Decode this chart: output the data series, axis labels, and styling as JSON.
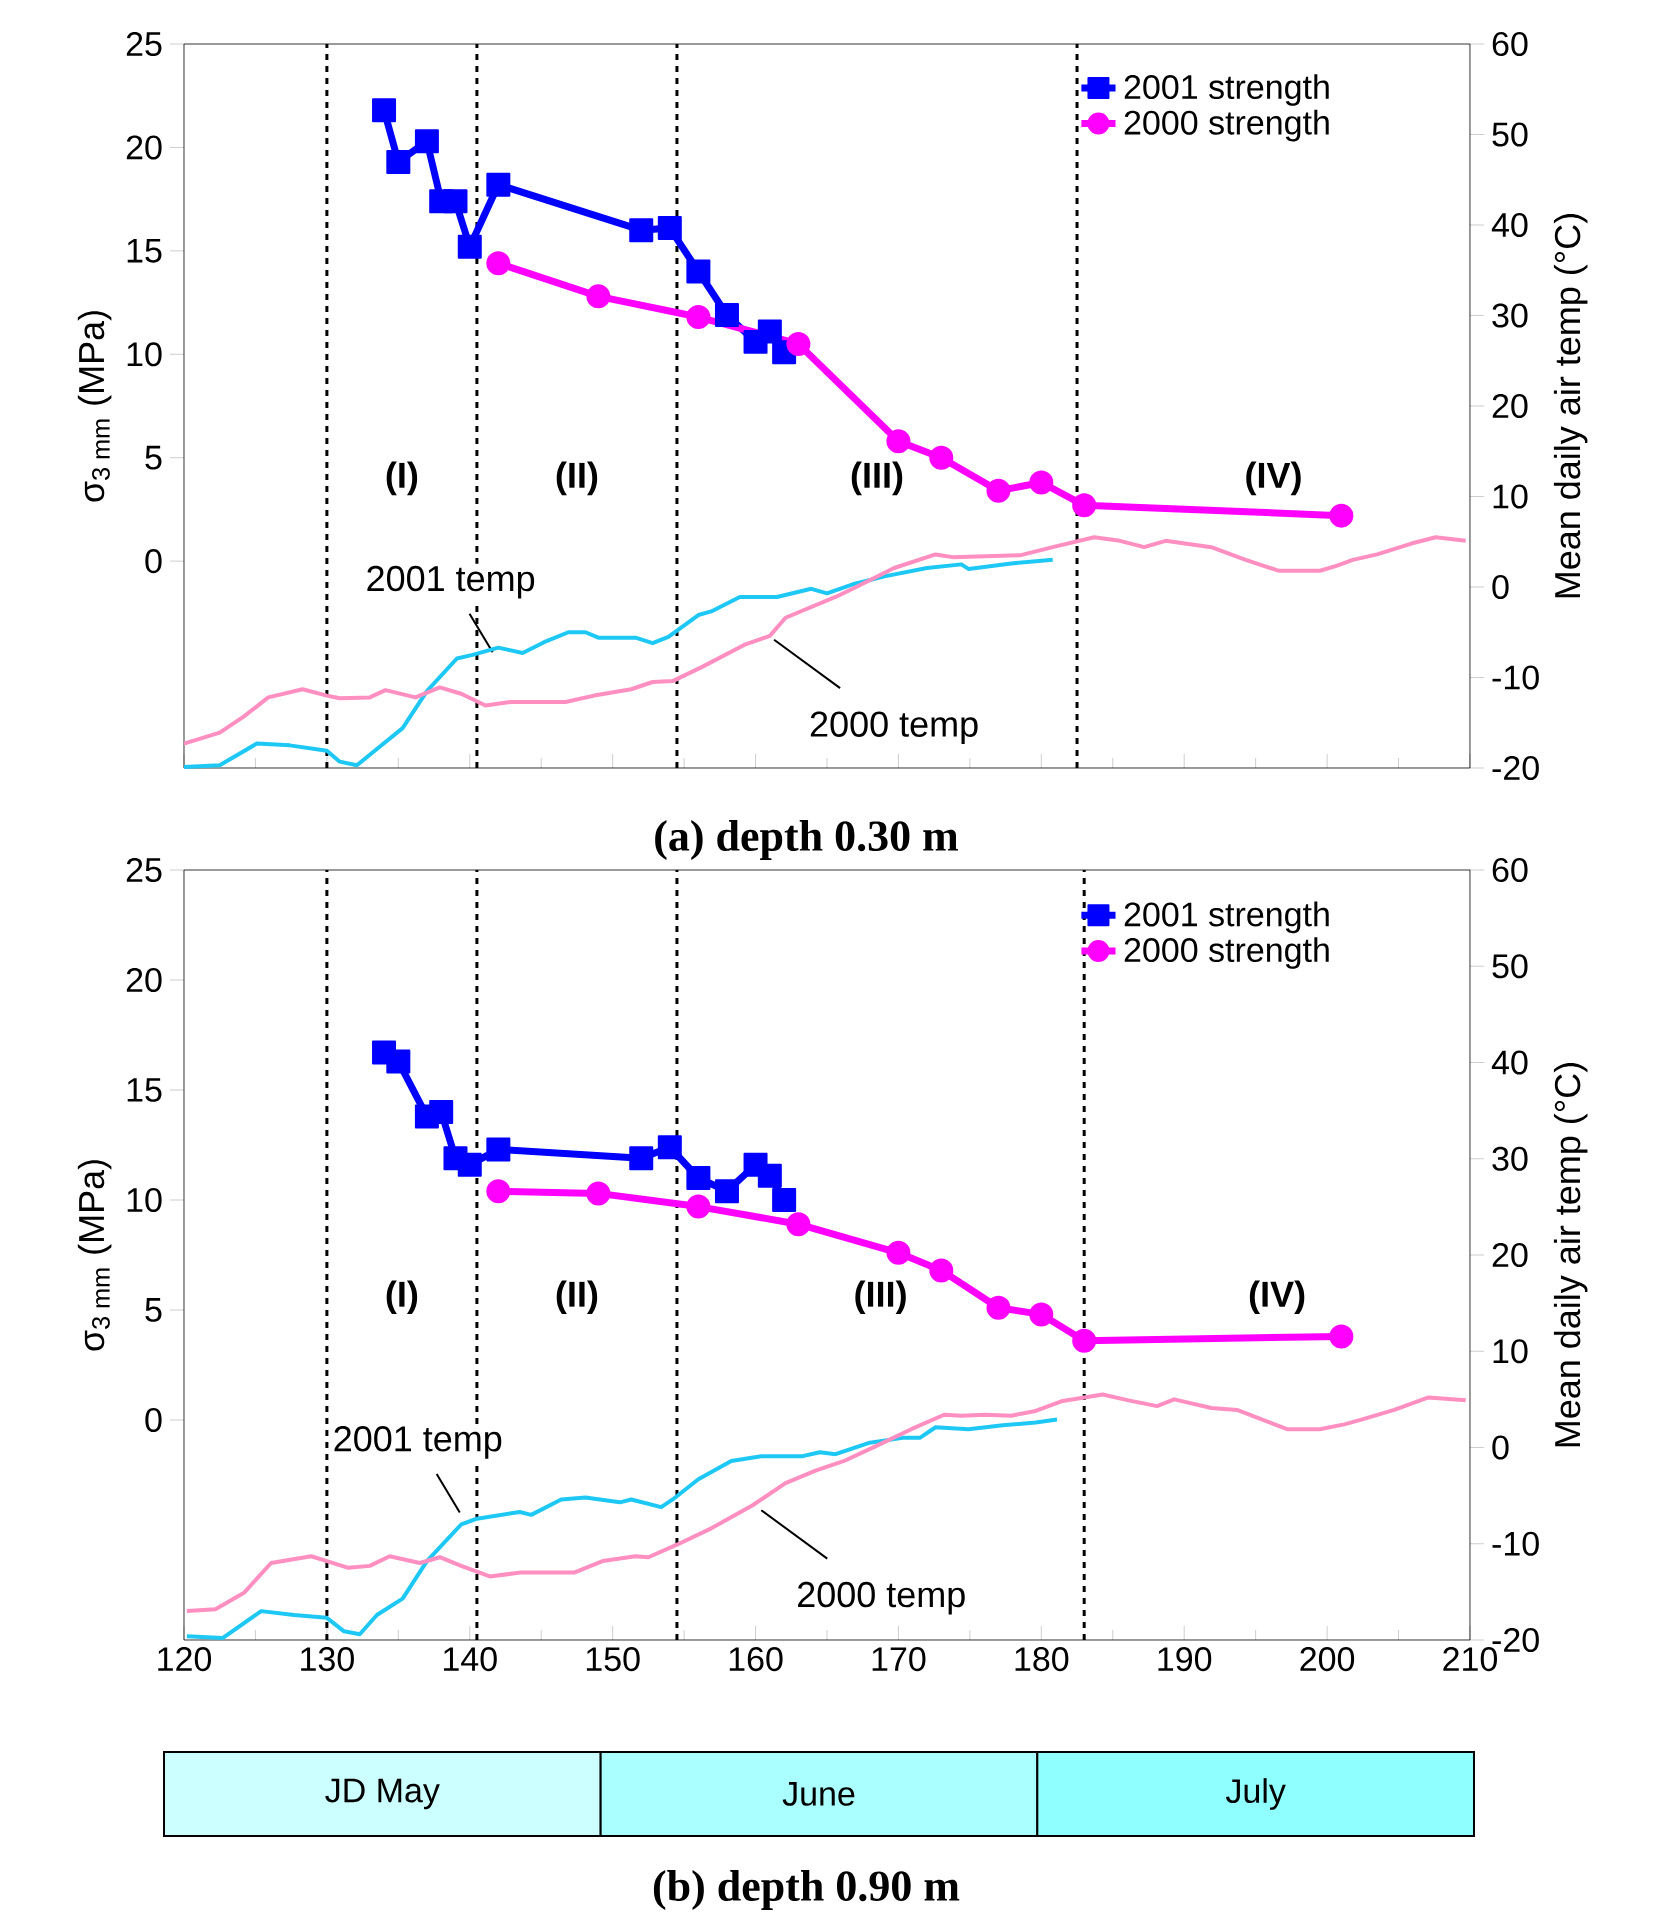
{
  "chart_data": [
    {
      "type": "line",
      "title": "(a) depth 0.30 m",
      "ylabel": "σ$_{3 mm}$ (MPa)",
      "y2label": "Mean daily air temp (°C)",
      "xlim": [
        120,
        210
      ],
      "xticks": [
        120,
        130,
        140,
        150,
        160,
        170,
        180,
        190,
        200,
        210
      ],
      "ylim": [
        -10,
        25
      ],
      "yticks": [
        0,
        5,
        10,
        15,
        20,
        25
      ],
      "y2lim": [
        -20,
        60
      ],
      "y2ticks": [
        -20,
        -10,
        0,
        10,
        20,
        30,
        40,
        50,
        60
      ],
      "tick_labels": "y",
      "legend": "top right",
      "series": [
        {
          "name": "2001 strength",
          "color": "#0000ff",
          "marker": "square",
          "x": [
            134,
            135,
            137,
            138,
            139,
            140,
            142,
            152,
            154,
            156,
            158,
            160,
            161,
            162
          ],
          "values": [
            21.8,
            19.3,
            20.3,
            17.4,
            17.4,
            15.2,
            18.2,
            16,
            16.1,
            14,
            11.9,
            10.6,
            11.1,
            10.1
          ]
        },
        {
          "name": "2000 strength",
          "color": "#ff00ff",
          "marker": "circle",
          "x": [
            142,
            149,
            156,
            163,
            170,
            173,
            177,
            180,
            183,
            201
          ],
          "values": [
            14.4,
            12.8,
            11.8,
            10.5,
            5.8,
            5,
            3.4,
            3.8,
            2.7,
            2.2
          ]
        },
        {
          "color": "#1ec8f5",
          "marker": "none",
          "axis": "y2",
          "x": [
            120,
            122.5,
            125.1,
            127.4,
            130,
            130.9,
            132.1,
            133.5,
            135.3,
            137,
            139.1,
            140.2,
            142,
            143.7,
            145.2,
            146.9,
            148.1,
            149,
            151.6,
            152.8,
            153.9,
            156,
            156.9,
            158.9,
            161.5,
            163.9,
            165,
            166.8,
            169.1,
            172,
            174.4,
            174.9,
            177.9,
            180.8
          ],
          "values": [
            -19.9,
            -19.7,
            -17.3,
            -17.5,
            -18.1,
            -19.3,
            -19.7,
            -17.9,
            -15.6,
            -11.5,
            -7.9,
            -7.5,
            -6.7,
            -7.3,
            -6.1,
            -5,
            -5,
            -5.6,
            -5.6,
            -6.2,
            -5.5,
            -3.1,
            -2.7,
            -1.1,
            -1.1,
            -0.2,
            -0.7,
            0.3,
            1.2,
            2.1,
            2.5,
            2,
            2.6,
            3
          ]
        },
        {
          "color": "#ff8fc0",
          "marker": "none",
          "axis": "y2",
          "x": [
            120,
            122.5,
            124.2,
            125.9,
            128.3,
            130,
            130.9,
            133,
            134.1,
            136.2,
            137.9,
            139.4,
            141.1,
            142.9,
            146.7,
            148.7,
            151.3,
            152.8,
            154.2,
            156.3,
            159.2,
            161,
            162.1,
            165.6,
            166.8,
            169.7,
            172.6,
            173.8,
            178.5,
            180.8,
            183.7,
            185.5,
            187.2,
            188.7,
            191.9,
            194.3,
            196.6,
            199.5,
            200.6,
            201.8,
            203.5,
            205.9,
            207.6,
            209.7
          ],
          "values": [
            -17.3,
            -16.1,
            -14.3,
            -12.2,
            -11.3,
            -12,
            -12.3,
            -12.2,
            -11.4,
            -12.2,
            -11.1,
            -11.8,
            -13.1,
            -12.7,
            -12.7,
            -12,
            -11.3,
            -10.5,
            -10.4,
            -8.8,
            -6.4,
            -5.4,
            -3.4,
            -1.1,
            -0.2,
            2.1,
            3.6,
            3.3,
            3.5,
            4.4,
            5.5,
            5.1,
            4.4,
            5.1,
            4.4,
            3,
            1.8,
            1.8,
            2.3,
            3,
            3.6,
            4.8,
            5.5,
            5.1
          ]
        }
      ],
      "ref_lines": [
        {
          "axis": "x",
          "value": 130,
          "color": "#000000",
          "line_style": "dashed"
        },
        {
          "axis": "x",
          "value": 140.5,
          "color": "#000000",
          "line_style": "dashed"
        },
        {
          "axis": "x",
          "value": 154.5,
          "color": "#000000",
          "line_style": "dashed"
        },
        {
          "axis": "x",
          "value": 182.5,
          "color": "#000000",
          "line_style": "dashed"
        }
      ],
      "annotations": [
        "(I)",
        "(II)",
        "(III)",
        "(IV)",
        {
          "text": "2001 temp",
          "x": 141.6,
          "y": -4.4
        },
        {
          "text": "2000 temp",
          "x": 161.3,
          "y": -3.8
        }
      ]
    },
    {
      "type": "line",
      "title": "(b) depth 0.90 m",
      "ylabel": "σ$_{3 mm}$ (MPa)",
      "y2label": "Mean daily air temp (°C)",
      "xlim": [
        120,
        210
      ],
      "xticks": [
        120,
        130,
        140,
        150,
        160,
        170,
        180,
        190,
        200,
        210
      ],
      "ylim": [
        -10,
        25
      ],
      "yticks": [
        0,
        5,
        10,
        15,
        20,
        25
      ],
      "y2lim": [
        -20,
        60
      ],
      "y2ticks": [
        -20,
        -10,
        0,
        10,
        20,
        30,
        40,
        50,
        60
      ],
      "legend": "top right",
      "series": [
        {
          "name": "2001 strength",
          "color": "#0000ff",
          "marker": "square",
          "x": [
            134,
            135,
            137,
            138,
            139,
            140,
            142,
            152,
            154,
            156,
            158,
            160,
            161,
            162
          ],
          "values": [
            16.7,
            16.3,
            13.8,
            14,
            11.9,
            11.6,
            12.3,
            11.9,
            12.4,
            11,
            10.4,
            11.6,
            11.1,
            10
          ]
        },
        {
          "name": "2000 strength",
          "color": "#ff00ff",
          "marker": "circle",
          "x": [
            142,
            149,
            156,
            163,
            170,
            173,
            177,
            180,
            183,
            201
          ],
          "values": [
            10.4,
            10.3,
            9.7,
            8.9,
            7.6,
            6.8,
            5.1,
            4.8,
            3.6,
            3.8
          ]
        },
        {
          "color": "#1ec8f5",
          "marker": "none",
          "axis": "y2",
          "x": [
            120.2,
            122.7,
            125.4,
            127.7,
            130,
            131.2,
            132.3,
            133.5,
            135.3,
            137,
            139.4,
            140.5,
            143.5,
            144.3,
            146.4,
            148.1,
            150.5,
            151.3,
            153.4,
            154.2,
            156,
            158.3,
            160.4,
            163.3,
            164.5,
            165.6,
            168,
            170.3,
            171.5,
            172.6,
            174.9,
            177.3,
            179.6,
            181.1
          ],
          "values": [
            -19.6,
            -19.8,
            -17,
            -17.4,
            -17.7,
            -19.1,
            -19.4,
            -17.4,
            -15.7,
            -11.8,
            -8,
            -7.4,
            -6.7,
            -7,
            -5.4,
            -5.2,
            -5.7,
            -5.4,
            -6.2,
            -5.4,
            -3.3,
            -1.4,
            -0.9,
            -0.9,
            -0.5,
            -0.7,
            0.5,
            1,
            1,
            2.1,
            1.9,
            2.3,
            2.6,
            2.9
          ]
        },
        {
          "color": "#ff8fc0",
          "marker": "none",
          "axis": "y2",
          "x": [
            120.2,
            122.2,
            124.2,
            126.1,
            128.9,
            130,
            131.5,
            133,
            134.4,
            136.5,
            137.9,
            139.4,
            141.4,
            143.5,
            147.3,
            149.3,
            151.6,
            152.5,
            154.5,
            156.9,
            159.8,
            162.1,
            164.2,
            166.2,
            168.5,
            170.9,
            173.2,
            174.4,
            176.1,
            177.9,
            179.6,
            181.4,
            184.3,
            186.1,
            188.1,
            189.3,
            191.9,
            193.7,
            197.2,
            199.5,
            201.2,
            202.4,
            204.7,
            207.1,
            209.7
          ],
          "values": [
            -17,
            -16.8,
            -15.1,
            -12,
            -11.3,
            -11.8,
            -12.5,
            -12.3,
            -11.3,
            -12,
            -11.4,
            -12.3,
            -13.4,
            -13,
            -13,
            -11.8,
            -11.3,
            -11.4,
            -10.1,
            -8.4,
            -6,
            -3.7,
            -2.4,
            -1.4,
            0.2,
            1.9,
            3.4,
            3.3,
            3.4,
            3.3,
            3.8,
            4.8,
            5.5,
            4.9,
            4.3,
            5,
            4.1,
            3.9,
            1.9,
            1.9,
            2.4,
            2.9,
            3.9,
            5.2,
            4.9
          ]
        }
      ],
      "ref_lines": [
        {
          "axis": "x",
          "value": 130,
          "color": "#000000",
          "line_style": "dashed"
        },
        {
          "axis": "x",
          "value": 140.5,
          "color": "#000000",
          "line_style": "dashed"
        },
        {
          "axis": "x",
          "value": 154.5,
          "color": "#000000",
          "line_style": "dashed"
        },
        {
          "axis": "x",
          "value": 183,
          "color": "#000000",
          "line_style": "dashed"
        }
      ],
      "annotations": [
        "(I)",
        "(II)",
        "(III)",
        "(IV)",
        {
          "text": "2001 temp",
          "x": 139.3,
          "y": -4.2
        },
        {
          "text": "2000 temp",
          "x": 160.4,
          "y": -4.1
        },
        "JD May",
        "June",
        "July"
      ]
    }
  ]
}
